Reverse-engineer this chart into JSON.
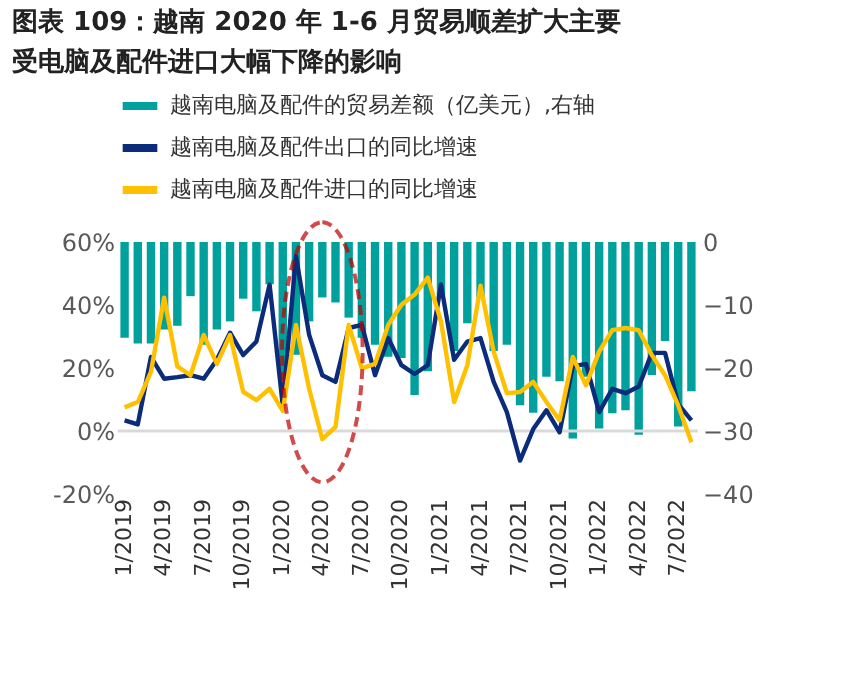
{
  "chart_data": {
    "type": "bar",
    "title": "图表 109：越南 2020 年 1-6 月贸易顺差扩大主要受电脑及配件进口大幅下降的影响",
    "categories": [
      "1/2019",
      null,
      null,
      "4/2019",
      null,
      null,
      "7/2019",
      null,
      null,
      "10/2019",
      null,
      null,
      "1/2020",
      null,
      null,
      "4/2020",
      null,
      null,
      "7/2020",
      null,
      null,
      "10/2020",
      null,
      null,
      "1/2021",
      null,
      null,
      "4/2021",
      null,
      null,
      "7/2021",
      null,
      null,
      "10/2021",
      null,
      null,
      "1/2022",
      null,
      null,
      "4/2022",
      null,
      null,
      "7/2022",
      null
    ],
    "series": [
      {
        "name": "越南电脑及配件的贸易差额（亿美元）,右轴",
        "axis": "y2",
        "color": "#00a19c",
        "values": [
          -15.2,
          -16.1,
          -16.1,
          -13.9,
          -13.3,
          -8.6,
          -16.3,
          -13.9,
          -12.6,
          -9.0,
          -11.0,
          -6.7,
          -22.0,
          -17.9,
          -12.6,
          -8.8,
          -9.6,
          -12.0,
          -15.2,
          -16.3,
          -18.2,
          -18.4,
          -24.3,
          -20.5,
          -8.8,
          -17.3,
          -12.9,
          -8.8,
          -17.3,
          -16.3,
          -25.9,
          -27.1,
          -21.4,
          -22.1,
          -31.2,
          -21.4,
          -29.6,
          -27.2,
          -26.7,
          -30.6,
          -21.1,
          -15.7,
          -29.3,
          -23.7
        ]
      },
      {
        "name": "越南电脑及配件出口的同比增速",
        "type": "line",
        "color": "#0b2c7a",
        "values": [
          3.4,
          2.1,
          23.5,
          16.6,
          17.1,
          17.7,
          16.6,
          22.6,
          31.2,
          24.1,
          28.4,
          46.5,
          8.1,
          55.5,
          30.5,
          17.7,
          15.6,
          32.7,
          33.7,
          17.7,
          29.5,
          20.9,
          18.1,
          20.9,
          46.5,
          22.6,
          28.4,
          29.5,
          15.6,
          6.0,
          -9.4,
          0.6,
          6.6,
          -0.4,
          20.5,
          21.3,
          6.0,
          13.4,
          12.0,
          14.1,
          24.8,
          24.8,
          8.5,
          3.4
        ]
      },
      {
        "name": "越南电脑及配件进口的同比增速",
        "type": "line",
        "color": "#ffc000",
        "values": [
          7.5,
          9.2,
          18.8,
          42.3,
          20.5,
          17.7,
          30.5,
          21.3,
          30.5,
          12.4,
          9.8,
          13.4,
          6.4,
          33.7,
          13.4,
          -2.6,
          1.3,
          33.7,
          19.9,
          21.3,
          33.7,
          40.1,
          43.3,
          48.7,
          34.8,
          9.2,
          20.9,
          46.1,
          25.2,
          12.0,
          12.4,
          15.6,
          9.2,
          3.4,
          23.5,
          14.5,
          25.2,
          32.0,
          32.7,
          32.0,
          24.1,
          17.7,
          8.1,
          -3.6
        ]
      }
    ],
    "ylim": [
      -20,
      60
    ],
    "yticks": [
      {
        "value": -20,
        "label": "-20%"
      },
      {
        "value": 0,
        "label": "0%"
      },
      {
        "value": 20,
        "label": "20%"
      },
      {
        "value": 40,
        "label": "40%"
      },
      {
        "value": 60,
        "label": "60%"
      }
    ],
    "y2lim": [
      -40,
      0
    ],
    "y2ticks": [
      -40,
      -30,
      -20,
      -10,
      0
    ],
    "ref_lines": [
      {
        "axis": "y",
        "value": 0,
        "color": "#d9d9d9"
      }
    ],
    "grid": false,
    "legend": "top",
    "line_style": "solid"
  }
}
